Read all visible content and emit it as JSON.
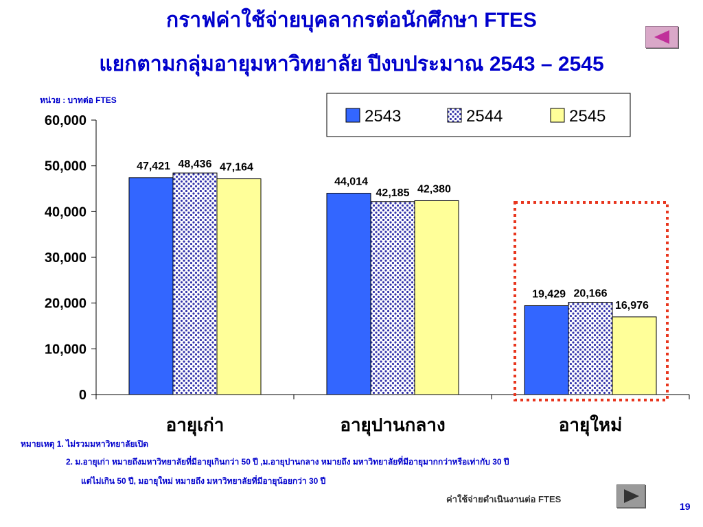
{
  "slide": {
    "title_line1": "กราฟค่าใช้จ่ายบุคลากรต่อนักศึกษา FTES",
    "title_line2": "แยกตามกลุ่มอายุมหาวิทยาลัย ปีงบประมาณ 2543 – 2545",
    "unit": "หน่วย : บาทต่อ FTES",
    "notes": {
      "heading": "หมายเหตุ  1. ไม่รวมมหาวิทยาลัยเปิด",
      "item2_line1": "2.  ม.อายุเก่า หมายถึงมหาวิทยาลัยที่มีอายุเกินกว่า 50 ปี ,ม.อายุปานกลาง หมายถึง มหาวิทยาลัยที่มีอายุมากกว่าหรือเท่ากับ 30 ปี",
      "item2_line2": "แต่ไม่เกิน  50 ปี, มอายุใหม่ หมายถึง มหาวิทยาลัยที่มีอายุน้อยกว่า 30 ปี"
    },
    "footer_caption": "ค่าใช้จ่ายดำเนินงานต่อ FTES",
    "page_number": "19",
    "prev_icon": "triangle-left-icon",
    "next_icon": "triangle-right-icon",
    "highlight_color": "#e8361e"
  },
  "chart_data": {
    "type": "bar",
    "categories": [
      "อายุเก่า",
      "อายุปานกลาง",
      "อายุใหม่"
    ],
    "series": [
      {
        "name": "2543",
        "values": [
          47421,
          44014,
          19429
        ],
        "color": "#3366ff",
        "pattern": "solid"
      },
      {
        "name": "2544",
        "values": [
          48436,
          42185,
          20166
        ],
        "color": "#3333aa",
        "pattern": "dots"
      },
      {
        "name": "2545",
        "values": [
          47164,
          42380,
          16976
        ],
        "color": "#ffff99",
        "pattern": "solid"
      }
    ],
    "data_labels": [
      [
        "47,421",
        "44,014",
        "19,429"
      ],
      [
        "48,436",
        "42,185",
        "20,166"
      ],
      [
        "47,164",
        "42,380",
        "16,976"
      ]
    ],
    "yticks": [
      "0",
      "10,000",
      "20,000",
      "30,000",
      "40,000",
      "50,000",
      "60,000"
    ],
    "ylim": [
      0,
      60000
    ],
    "legend_position": "top-right",
    "highlighted_category": "อายุใหม่"
  }
}
